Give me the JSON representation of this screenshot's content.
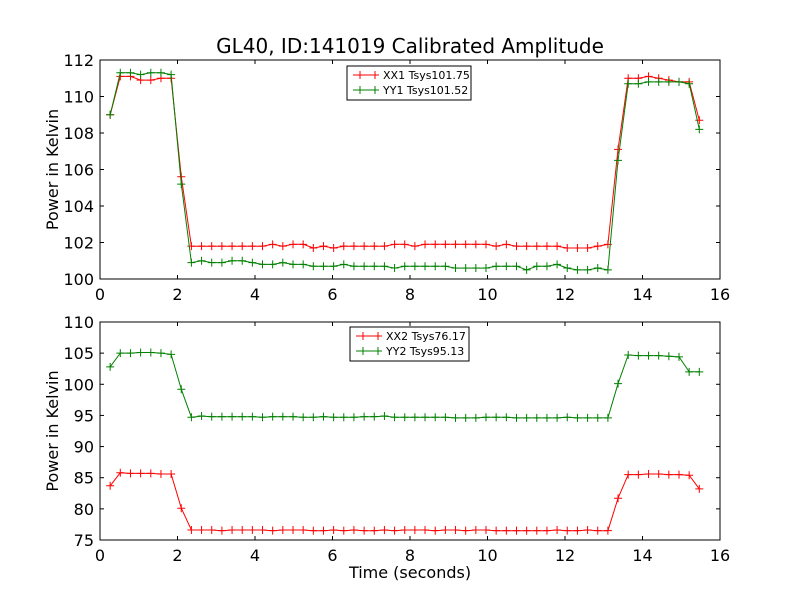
{
  "chart_data": [
    {
      "type": "line",
      "title": "GL40, ID:141019 Calibrated Amplitude",
      "xlabel": "",
      "ylabel": "Power in Kelvin",
      "xlim": [
        0,
        16
      ],
      "ylim": [
        100,
        112
      ],
      "xticks": [
        0,
        2,
        4,
        6,
        8,
        10,
        12,
        14,
        16
      ],
      "yticks": [
        100,
        102,
        104,
        106,
        108,
        110,
        112
      ],
      "grid": false,
      "legend": "top-center",
      "x": [
        0.262,
        0.524,
        0.786,
        1.048,
        1.311,
        1.573,
        1.835,
        2.097,
        2.359,
        2.621,
        2.883,
        3.146,
        3.408,
        3.67,
        3.932,
        4.194,
        4.456,
        4.718,
        4.981,
        5.243,
        5.505,
        5.767,
        6.029,
        6.291,
        6.553,
        6.816,
        7.078,
        7.34,
        7.602,
        7.864,
        8.126,
        8.388,
        8.651,
        8.913,
        9.175,
        9.437,
        9.699,
        9.961,
        10.223,
        10.486,
        10.748,
        11.01,
        11.272,
        11.534,
        11.796,
        12.058,
        12.321,
        12.583,
        12.845,
        13.107,
        13.369,
        13.631,
        13.893,
        14.156,
        14.418,
        14.68,
        14.942,
        15.204,
        15.466
      ],
      "series": [
        {
          "name": "XX1 Tsys101.75",
          "color": "#ff0000",
          "values": [
            109.0,
            111.1,
            111.1,
            110.9,
            110.9,
            111.0,
            111.0,
            105.6,
            101.8,
            101.8,
            101.8,
            101.8,
            101.8,
            101.8,
            101.8,
            101.8,
            101.9,
            101.8,
            101.9,
            101.9,
            101.7,
            101.8,
            101.7,
            101.8,
            101.8,
            101.8,
            101.8,
            101.8,
            101.9,
            101.9,
            101.8,
            101.9,
            101.9,
            101.9,
            101.9,
            101.9,
            101.9,
            101.9,
            101.8,
            101.9,
            101.8,
            101.8,
            101.8,
            101.8,
            101.8,
            101.7,
            101.7,
            101.7,
            101.8,
            101.9,
            107.1,
            111.0,
            111.0,
            111.1,
            111.0,
            110.9,
            110.8,
            110.8,
            108.7
          ]
        },
        {
          "name": "YY1 Tsys101.52",
          "color": "#008000",
          "values": [
            109.0,
            111.3,
            111.3,
            111.2,
            111.3,
            111.3,
            111.2,
            105.2,
            100.9,
            101.0,
            100.9,
            100.9,
            101.0,
            101.0,
            100.9,
            100.8,
            100.8,
            100.9,
            100.8,
            100.8,
            100.7,
            100.7,
            100.7,
            100.8,
            100.7,
            100.7,
            100.7,
            100.7,
            100.6,
            100.7,
            100.7,
            100.7,
            100.7,
            100.7,
            100.6,
            100.6,
            100.6,
            100.6,
            100.7,
            100.7,
            100.7,
            100.5,
            100.7,
            100.7,
            100.8,
            100.6,
            100.5,
            100.5,
            100.6,
            100.5,
            106.5,
            110.7,
            110.7,
            110.8,
            110.8,
            110.8,
            110.8,
            110.7,
            108.2
          ]
        }
      ]
    },
    {
      "type": "line",
      "title": "",
      "xlabel": "Time (seconds)",
      "ylabel": "Power in Kelvin",
      "xlim": [
        0,
        16
      ],
      "ylim": [
        75,
        110
      ],
      "xticks": [
        0,
        2,
        4,
        6,
        8,
        10,
        12,
        14,
        16
      ],
      "yticks": [
        75,
        80,
        85,
        90,
        95,
        100,
        105,
        110
      ],
      "grid": false,
      "legend": "top-center",
      "x": [
        0.262,
        0.524,
        0.786,
        1.048,
        1.311,
        1.573,
        1.835,
        2.097,
        2.359,
        2.621,
        2.883,
        3.146,
        3.408,
        3.67,
        3.932,
        4.194,
        4.456,
        4.718,
        4.981,
        5.243,
        5.505,
        5.767,
        6.029,
        6.291,
        6.553,
        6.816,
        7.078,
        7.34,
        7.602,
        7.864,
        8.126,
        8.388,
        8.651,
        8.913,
        9.175,
        9.437,
        9.699,
        9.961,
        10.223,
        10.486,
        10.748,
        11.01,
        11.272,
        11.534,
        11.796,
        12.058,
        12.321,
        12.583,
        12.845,
        13.107,
        13.369,
        13.631,
        13.893,
        14.156,
        14.418,
        14.68,
        14.942,
        15.204,
        15.466
      ],
      "series": [
        {
          "name": "XX2 Tsys76.17",
          "color": "#ff0000",
          "values": [
            83.7,
            85.8,
            85.7,
            85.7,
            85.7,
            85.6,
            85.6,
            80.1,
            76.6,
            76.6,
            76.6,
            76.5,
            76.6,
            76.6,
            76.6,
            76.6,
            76.5,
            76.6,
            76.6,
            76.6,
            76.5,
            76.5,
            76.6,
            76.5,
            76.6,
            76.5,
            76.5,
            76.6,
            76.5,
            76.6,
            76.6,
            76.6,
            76.5,
            76.6,
            76.6,
            76.5,
            76.6,
            76.6,
            76.5,
            76.5,
            76.5,
            76.5,
            76.5,
            76.5,
            76.6,
            76.5,
            76.5,
            76.6,
            76.5,
            76.5,
            81.7,
            85.5,
            85.5,
            85.6,
            85.6,
            85.5,
            85.5,
            85.4,
            83.2
          ]
        },
        {
          "name": "YY2 Tsys95.13",
          "color": "#008000",
          "values": [
            102.8,
            105.0,
            105.0,
            105.1,
            105.1,
            105.0,
            104.8,
            99.2,
            94.7,
            94.9,
            94.8,
            94.8,
            94.8,
            94.8,
            94.8,
            94.7,
            94.8,
            94.8,
            94.8,
            94.7,
            94.7,
            94.8,
            94.7,
            94.7,
            94.7,
            94.8,
            94.8,
            94.9,
            94.7,
            94.7,
            94.7,
            94.7,
            94.7,
            94.7,
            94.6,
            94.6,
            94.6,
            94.7,
            94.7,
            94.7,
            94.6,
            94.6,
            94.6,
            94.6,
            94.6,
            94.7,
            94.6,
            94.6,
            94.6,
            94.6,
            100.1,
            104.7,
            104.6,
            104.6,
            104.6,
            104.5,
            104.4,
            102.0,
            102.0
          ]
        }
      ]
    }
  ]
}
